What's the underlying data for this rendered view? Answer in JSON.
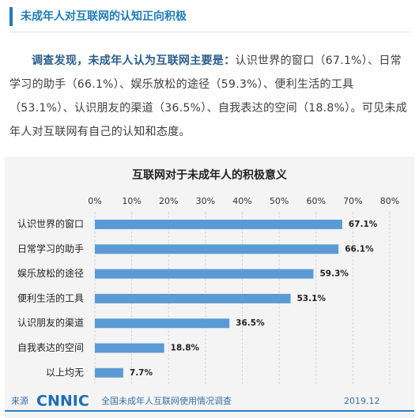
{
  "header": {
    "title": "未成年人对互联网的认知正向积极"
  },
  "paragraph": {
    "lead": "调查发现，未成年人认为互联网主要是：",
    "body": "认识世界的窗口（67.1%）、日常学习的助手（66.1%）、娱乐放松的途径（59.3%）、便利生活的工具（53.1%）、认识朋友的渠道（36.5%）、自我表达的空间（18.8%）。可见未成年人对互联网有自己的认知和态度。"
  },
  "chart_data": {
    "type": "hbar",
    "title": "互联网对于未成年人的积极意义",
    "categories": [
      "认识世界的窗口",
      "日常学习的助手",
      "娱乐放松的途径",
      "便利生活的工具",
      "认识朋友的渠道",
      "自我表达的空间",
      "以上均无"
    ],
    "values": [
      67.1,
      66.1,
      59.3,
      53.1,
      36.5,
      18.8,
      7.7
    ],
    "value_labels": [
      "67.1%",
      "66.1%",
      "59.3%",
      "53.1%",
      "36.5%",
      "18.8%",
      "7.7%"
    ],
    "color": "#5b9bd5",
    "xlim": [
      0,
      80
    ],
    "xticks": [
      {
        "value": 0,
        "label": "0%"
      },
      {
        "value": 10,
        "label": "10%"
      },
      {
        "value": 20,
        "label": "20%"
      },
      {
        "value": 30,
        "label": "30%"
      },
      {
        "value": 40,
        "label": "40%"
      },
      {
        "value": 50,
        "label": "50%"
      },
      {
        "value": 60,
        "label": "60%"
      },
      {
        "value": 70,
        "label": "70%"
      },
      {
        "value": 80,
        "label": "80%"
      }
    ],
    "grid": true,
    "source_prefix": "来源",
    "source_logo": "CNNIC",
    "source": "全国未成年人互联网使用情况调查",
    "date": "2019.12"
  }
}
